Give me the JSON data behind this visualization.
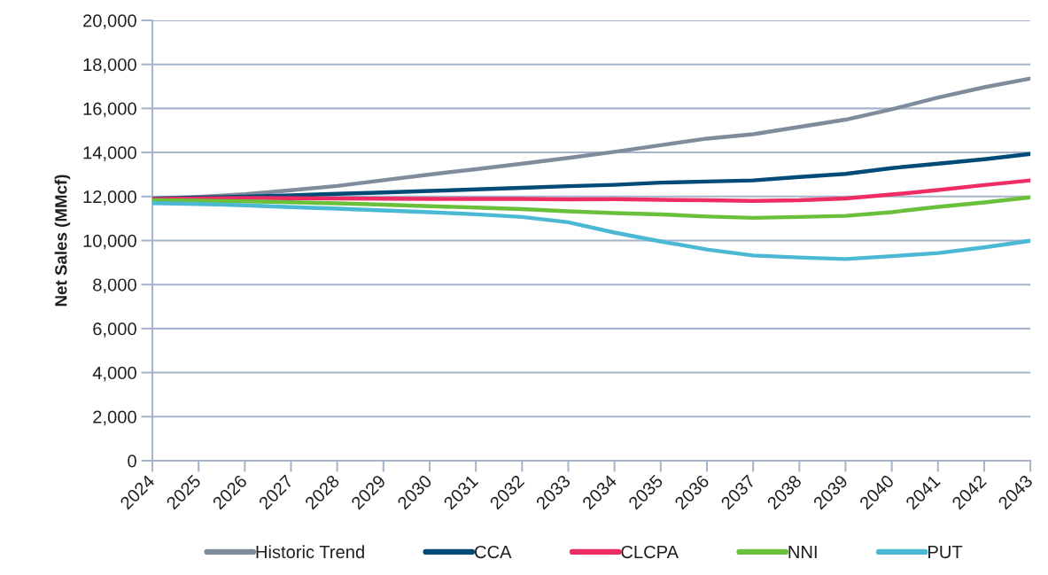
{
  "chart_data": {
    "type": "line",
    "ylabel": "Net Sales (MMcf)",
    "categories": [
      "2024",
      "2025",
      "2026",
      "2027",
      "2028",
      "2029",
      "2030",
      "2031",
      "2032",
      "2033",
      "2034",
      "2035",
      "2036",
      "2037",
      "2038",
      "2039",
      "2040",
      "2041",
      "2042",
      "2043"
    ],
    "series": [
      {
        "name": "Historic Trend",
        "color": "#7f8c9b",
        "values": [
          11900,
          11980,
          12100,
          12280,
          12480,
          12740,
          13000,
          13240,
          13490,
          13750,
          14030,
          14330,
          14630,
          14830,
          15160,
          15490,
          15960,
          16490,
          16960,
          17360
        ]
      },
      {
        "name": "CCA",
        "color": "#004a78",
        "values": [
          11900,
          11950,
          11990,
          12050,
          12120,
          12180,
          12250,
          12320,
          12390,
          12470,
          12530,
          12630,
          12680,
          12730,
          12890,
          13030,
          13290,
          13490,
          13690,
          13930
        ]
      },
      {
        "name": "CLCPA",
        "color": "#ee2d65",
        "values": [
          11880,
          11910,
          11930,
          11920,
          11910,
          11900,
          11890,
          11890,
          11890,
          11870,
          11880,
          11850,
          11830,
          11800,
          11830,
          11910,
          12090,
          12290,
          12520,
          12730
        ]
      },
      {
        "name": "NNI",
        "color": "#6abf3b",
        "values": [
          11830,
          11810,
          11780,
          11740,
          11690,
          11630,
          11560,
          11500,
          11430,
          11330,
          11250,
          11190,
          11090,
          11030,
          11070,
          11120,
          11290,
          11530,
          11730,
          11960
        ]
      },
      {
        "name": "PUT",
        "color": "#4bb8d4",
        "values": [
          11700,
          11660,
          11600,
          11520,
          11450,
          11370,
          11290,
          11190,
          11070,
          10830,
          10360,
          9960,
          9590,
          9320,
          9230,
          9160,
          9290,
          9430,
          9690,
          9990
        ]
      }
    ],
    "ylim": [
      0,
      20000
    ],
    "yticks": [
      0,
      {
        "value": 2000,
        "label": "2,000"
      },
      {
        "value": 4000,
        "label": "4,000"
      },
      {
        "value": 6000,
        "label": "6,000"
      },
      {
        "value": 8000,
        "label": "8,000"
      },
      {
        "value": 10000,
        "label": "10,000"
      },
      {
        "value": 12000,
        "label": "12,000"
      },
      {
        "value": 14000,
        "label": "14,000"
      },
      {
        "value": 16000,
        "label": "16,000"
      },
      {
        "value": 18000,
        "label": "18,000"
      },
      {
        "value": 20000,
        "label": "20,000"
      }
    ],
    "grid": "y",
    "legend": "bottom",
    "marker": "none",
    "line_style": "solid"
  }
}
